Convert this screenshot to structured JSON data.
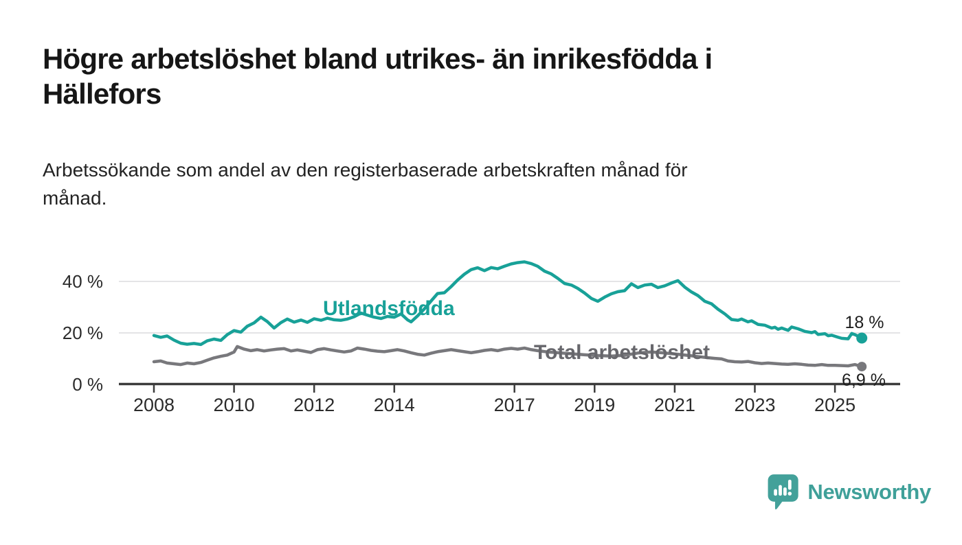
{
  "header": {
    "title_line1": "Högre arbetslöshet bland utrikes- än inrikesfödda i",
    "title_line2": "Hällefors",
    "subtitle_line1": "Arbetssökande som andel av den registerbaserade arbetskraften månad för",
    "subtitle_line2": "månad."
  },
  "footer": {
    "brand": "Newsworthy"
  },
  "colors": {
    "foreign_born_series": "#18a198",
    "total_series": "#78787c",
    "total_label": "#67676c",
    "axis": "#3b3b3b",
    "gridline": "#dcdcdd",
    "value_label": "#1d1d1d",
    "brand_teal": "#43a19a"
  },
  "chart_data": {
    "type": "line",
    "title": "Högre arbetslöshet bland utrikes- än inrikesfödda i Hällefors",
    "subtitle": "Arbetssökande som andel av den registerbaserade arbetskraften månad för månad.",
    "xlabel": "",
    "ylabel": "",
    "ylim": [
      0,
      50
    ],
    "grid": "horizontal",
    "legend_position": "inline-labels",
    "y_ticks": [
      {
        "value": 0,
        "label": "0 %"
      },
      {
        "value": 20,
        "label": "20 %"
      },
      {
        "value": 40,
        "label": "40 %"
      }
    ],
    "x_ticks": [
      {
        "year": 2008,
        "label": "2008"
      },
      {
        "year": 2010,
        "label": "2010"
      },
      {
        "year": 2012,
        "label": "2012"
      },
      {
        "year": 2014,
        "label": "2014"
      },
      {
        "year": 2017,
        "label": "2017"
      },
      {
        "year": 2019,
        "label": "2019"
      },
      {
        "year": 2021,
        "label": "2021"
      },
      {
        "year": 2023,
        "label": "2023"
      },
      {
        "year": 2025,
        "label": "2025"
      }
    ],
    "series": [
      {
        "name": "Utlandsfödda",
        "color": "#18a198",
        "end_label": "18 %",
        "end_value": 18.0,
        "x": [
          2008.0,
          2008.17,
          2008.33,
          2008.5,
          2008.67,
          2008.83,
          2009.0,
          2009.17,
          2009.33,
          2009.5,
          2009.67,
          2009.83,
          2010.0,
          2010.17,
          2010.33,
          2010.5,
          2010.67,
          2010.83,
          2011.0,
          2011.17,
          2011.33,
          2011.5,
          2011.67,
          2011.83,
          2012.0,
          2012.17,
          2012.33,
          2012.5,
          2012.67,
          2012.83,
          2013.0,
          2013.17,
          2013.33,
          2013.5,
          2013.67,
          2013.83,
          2014.0,
          2014.17,
          2014.33,
          2014.42,
          2014.58,
          2014.75,
          2014.92,
          2015.08,
          2015.25,
          2015.42,
          2015.58,
          2015.75,
          2015.92,
          2016.08,
          2016.25,
          2016.42,
          2016.58,
          2016.75,
          2016.92,
          2017.08,
          2017.25,
          2017.42,
          2017.58,
          2017.75,
          2017.92,
          2018.08,
          2018.25,
          2018.42,
          2018.58,
          2018.75,
          2018.92,
          2019.08,
          2019.25,
          2019.42,
          2019.58,
          2019.75,
          2019.92,
          2020.08,
          2020.25,
          2020.42,
          2020.58,
          2020.75,
          2020.92,
          2021.08,
          2021.25,
          2021.42,
          2021.58,
          2021.75,
          2021.92,
          2022.08,
          2022.25,
          2022.42,
          2022.58,
          2022.67,
          2022.83,
          2022.92,
          2023.08,
          2023.25,
          2023.42,
          2023.5,
          2023.58,
          2023.67,
          2023.83,
          2023.92,
          2024.08,
          2024.25,
          2024.42,
          2024.5,
          2024.58,
          2024.75,
          2024.83,
          2024.92,
          2025.08,
          2025.17,
          2025.33,
          2025.42,
          2025.5,
          2025.67
        ],
        "values": [
          19.0,
          18.3,
          18.8,
          17.2,
          16.0,
          15.6,
          15.9,
          15.5,
          16.9,
          17.6,
          17.1,
          19.3,
          20.9,
          20.3,
          22.6,
          23.9,
          26.1,
          24.4,
          21.9,
          24.0,
          25.4,
          24.2,
          25.0,
          24.1,
          25.5,
          24.9,
          25.7,
          25.1,
          24.9,
          25.4,
          26.3,
          27.7,
          26.9,
          26.1,
          25.6,
          26.4,
          26.1,
          27.4,
          25.1,
          24.3,
          26.6,
          29.3,
          32.4,
          35.3,
          35.6,
          38.0,
          40.5,
          42.8,
          44.6,
          45.3,
          44.2,
          45.4,
          44.9,
          45.9,
          46.8,
          47.3,
          47.6,
          46.9,
          45.9,
          44.0,
          42.9,
          41.2,
          39.2,
          38.6,
          37.3,
          35.5,
          33.4,
          32.3,
          33.9,
          35.2,
          36.0,
          36.4,
          39.1,
          37.6,
          38.6,
          38.9,
          37.6,
          38.3,
          39.4,
          40.3,
          37.8,
          35.9,
          34.5,
          32.3,
          31.3,
          29.2,
          27.4,
          25.2,
          24.9,
          25.4,
          24.3,
          24.7,
          23.3,
          23.0,
          21.9,
          22.2,
          21.4,
          21.9,
          21.0,
          22.3,
          21.6,
          20.6,
          20.1,
          20.5,
          19.4,
          19.7,
          18.9,
          19.1,
          18.3,
          17.9,
          17.7,
          19.8,
          19.3,
          18.0
        ]
      },
      {
        "name": "Total arbetslöshet",
        "color": "#78787c",
        "end_label": "6,9 %",
        "end_value": 6.9,
        "x": [
          2008.0,
          2008.17,
          2008.33,
          2008.5,
          2008.67,
          2008.83,
          2009.0,
          2009.17,
          2009.33,
          2009.5,
          2009.67,
          2009.83,
          2010.0,
          2010.08,
          2010.25,
          2010.42,
          2010.58,
          2010.75,
          2010.92,
          2011.08,
          2011.25,
          2011.42,
          2011.58,
          2011.75,
          2011.92,
          2012.08,
          2012.25,
          2012.42,
          2012.58,
          2012.75,
          2012.92,
          2013.08,
          2013.25,
          2013.42,
          2013.58,
          2013.75,
          2013.92,
          2014.08,
          2014.25,
          2014.42,
          2014.58,
          2014.75,
          2014.92,
          2015.08,
          2015.25,
          2015.42,
          2015.58,
          2015.75,
          2015.92,
          2016.08,
          2016.25,
          2016.42,
          2016.58,
          2016.75,
          2016.92,
          2017.08,
          2017.25,
          2017.42,
          2017.58,
          2017.83,
          2018.08,
          2018.42,
          2018.75,
          2019.08,
          2019.42,
          2019.75,
          2020.08,
          2020.42,
          2020.75,
          2021.08,
          2021.42,
          2021.75,
          2022.0,
          2022.17,
          2022.33,
          2022.5,
          2022.67,
          2022.83,
          2023.0,
          2023.17,
          2023.33,
          2023.5,
          2023.67,
          2023.83,
          2024.0,
          2024.17,
          2024.33,
          2024.5,
          2024.67,
          2024.83,
          2025.0,
          2025.17,
          2025.33,
          2025.5,
          2025.67
        ],
        "values": [
          8.8,
          9.1,
          8.3,
          8.0,
          7.7,
          8.3,
          8.0,
          8.5,
          9.4,
          10.3,
          10.9,
          11.4,
          12.6,
          14.7,
          13.7,
          13.1,
          13.5,
          13.0,
          13.4,
          13.7,
          13.9,
          13.0,
          13.4,
          12.9,
          12.4,
          13.5,
          13.9,
          13.4,
          13.0,
          12.6,
          13.0,
          14.1,
          13.7,
          13.2,
          12.9,
          12.7,
          13.1,
          13.5,
          13.0,
          12.3,
          11.7,
          11.4,
          12.1,
          12.7,
          13.1,
          13.5,
          13.1,
          12.7,
          12.3,
          12.7,
          13.2,
          13.5,
          13.1,
          13.7,
          14.0,
          13.7,
          14.1,
          13.5,
          13.1,
          12.6,
          12.3,
          11.9,
          11.5,
          11.2,
          11.0,
          11.3,
          12.2,
          12.6,
          12.2,
          11.7,
          11.1,
          10.5,
          10.1,
          9.9,
          9.1,
          8.8,
          8.7,
          8.9,
          8.4,
          8.1,
          8.3,
          8.1,
          7.9,
          7.8,
          8.0,
          7.8,
          7.5,
          7.4,
          7.7,
          7.4,
          7.4,
          7.3,
          7.2,
          7.7,
          6.9
        ]
      }
    ]
  }
}
